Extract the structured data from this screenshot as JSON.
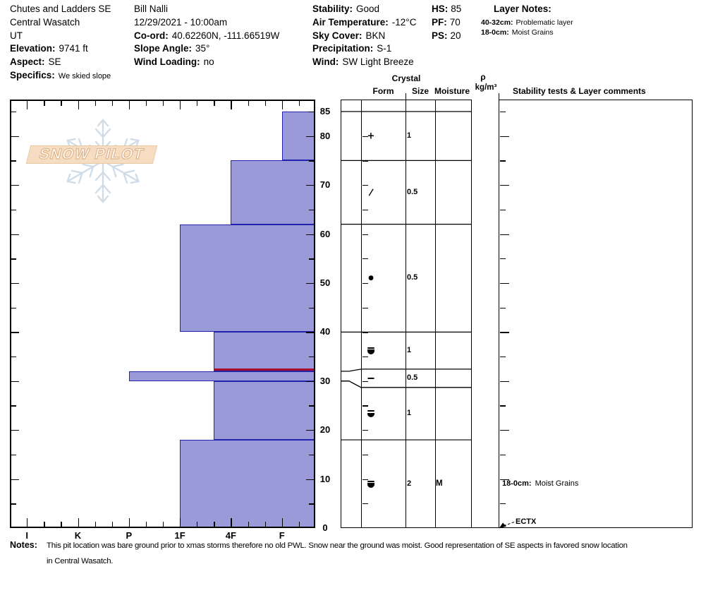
{
  "header": {
    "site": {
      "name": "Chutes and Ladders SE",
      "region": "Central Wasatch",
      "state": "UT",
      "elevation_label": "Elevation:",
      "elevation": "9741 ft",
      "aspect_label": "Aspect:",
      "aspect": "SE",
      "specifics_label": "Specifics:",
      "specifics": "We skied slope"
    },
    "observer": {
      "name": "Bill Nalli",
      "datetime": "12/29/2021 - 10:00am",
      "coord_label": "Co-ord:",
      "coord": "40.62260N, -111.66519W",
      "slope_angle_label": "Slope Angle:",
      "slope_angle": "35°",
      "wind_loading_label": "Wind Loading:",
      "wind_loading": "no"
    },
    "conditions": {
      "stability_label": "Stability:",
      "stability": "Good",
      "air_temp_label": "Air Temperature:",
      "air_temp": "-12°C",
      "sky_label": "Sky Cover:",
      "sky": "BKN",
      "precip_label": "Precipitation:",
      "precip": "S-1",
      "wind_label": "Wind:",
      "wind": "SW Light Breeze"
    },
    "depths": {
      "hs_label": "HS:",
      "hs": "85",
      "pf_label": "PF:",
      "pf": "70",
      "ps_label": "PS:",
      "ps": "20"
    },
    "layer_notes": {
      "title": "Layer Notes:",
      "notes": [
        {
          "range": "40-32cm:",
          "text": "Problematic layer"
        },
        {
          "range": "18-0cm:",
          "text": "Moist Grains"
        }
      ]
    }
  },
  "watermark": {
    "text": "SNOW PILOT"
  },
  "table_headers": {
    "crystal": "Crystal",
    "form": "Form",
    "size": "Size",
    "moisture": "Moisture",
    "rho": "ρ",
    "rho_units": "kg/m³",
    "stability": "Stability tests & Layer comments"
  },
  "chart_data": {
    "type": "bar",
    "subtype": "snow-hardness-profile",
    "title": "Snow pit hardness profile",
    "hardness_axis": {
      "categories": [
        "I",
        "K",
        "P",
        "1F",
        "4F",
        "F"
      ],
      "orientation": "hard-on-left-to-soft-on-right",
      "minor_ticks_per_step": 3
    },
    "depth_axis": {
      "unit": "cm",
      "labels": [
        85,
        80,
        70,
        60,
        50,
        40,
        30,
        20,
        10,
        0
      ],
      "surface_cm": 85,
      "ground_cm": 0
    },
    "layers": [
      {
        "top_cm": 85,
        "bottom_cm": 75,
        "hardness": "F",
        "form": "precipitation-particles",
        "glyph": "plus",
        "size_mm": "1",
        "moisture": ""
      },
      {
        "top_cm": 75,
        "bottom_cm": 62,
        "hardness": "4F",
        "form": "decomposing-fragments",
        "glyph": "slash",
        "size_mm": "0.5",
        "moisture": ""
      },
      {
        "top_cm": 62,
        "bottom_cm": 40,
        "hardness": "1F",
        "form": "rounded-grains",
        "glyph": "dot",
        "size_mm": "0.5",
        "moisture": ""
      },
      {
        "top_cm": 40,
        "bottom_cm": 32,
        "hardness": "4F+",
        "form": "mixed-rounds-facets",
        "glyph": "cup",
        "size_mm": "1",
        "moisture": ""
      },
      {
        "top_cm": 32,
        "bottom_cm": 30,
        "hardness": "P",
        "form": "crust",
        "glyph": "dash",
        "size_mm": "0.5",
        "moisture": ""
      },
      {
        "top_cm": 30,
        "bottom_cm": 18,
        "hardness": "4F+",
        "form": "mixed-rounds-facets",
        "glyph": "cup",
        "size_mm": "1",
        "moisture": ""
      },
      {
        "top_cm": 18,
        "bottom_cm": 0,
        "hardness": "1F",
        "form": "mixed-rounds-facets",
        "glyph": "cup",
        "size_mm": "2",
        "moisture": "M"
      }
    ],
    "flag_line": {
      "at_depth_cm": 32,
      "color": "#a60c2a"
    },
    "layer_comments": [
      {
        "range_label": "18-0cm:",
        "text": "Moist Grains",
        "at_depth_cm": 9
      }
    ],
    "stability_tests": [
      {
        "label": "ECTX",
        "at_depth_cm": 0
      }
    ],
    "colors": {
      "bar_fill": "#9a9ad8",
      "bar_border": "#2323b0"
    }
  },
  "notes": {
    "label": "Notes:",
    "line1": "This pit location was bare ground prior to xmas storms therefore no old PWL. Snow near the ground was moist. Good representation of SE aspects in favored snow location",
    "line2": "in Central Wasatch."
  }
}
